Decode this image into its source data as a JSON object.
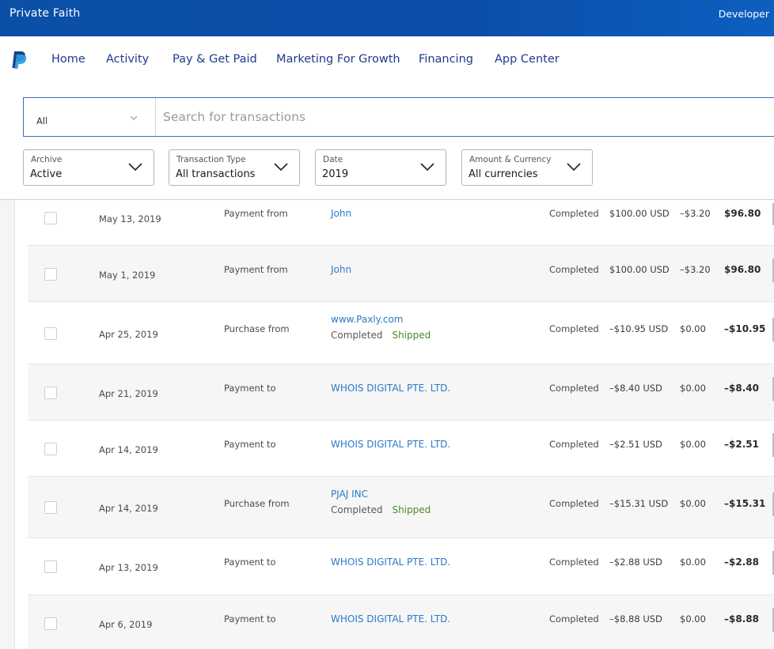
{
  "topbar": {
    "account_name": "Private Faith",
    "developer_label": "Developer"
  },
  "nav": {
    "items": [
      "Home",
      "Activity",
      "Pay & Get Paid",
      "Marketing For Growth",
      "Financing",
      "App Center"
    ]
  },
  "search": {
    "scope_value": "All",
    "placeholder": "Search for transactions"
  },
  "filters": [
    {
      "label": "Archive",
      "value": "Active"
    },
    {
      "label": "Transaction Type",
      "value": "All transactions"
    },
    {
      "label": "Date",
      "value": "2019"
    },
    {
      "label": "Amount & Currency",
      "value": "All currencies"
    }
  ],
  "transactions": [
    {
      "date": "May 13, 2019",
      "type": "Payment from",
      "name": "John",
      "sub_status": "",
      "sub_ship": "",
      "status": "Completed",
      "gross": "$100.00 USD",
      "fee": "–$3.20",
      "net": "$96.80"
    },
    {
      "date": "May 1, 2019",
      "type": "Payment from",
      "name": "John",
      "sub_status": "",
      "sub_ship": "",
      "status": "Completed",
      "gross": "$100.00 USD",
      "fee": "–$3.20",
      "net": "$96.80"
    },
    {
      "date": "Apr 25, 2019",
      "type": "Purchase from",
      "name": "www.Paxly.com",
      "sub_status": "Completed",
      "sub_ship": "Shipped",
      "status": "Completed",
      "gross": "–$10.95 USD",
      "fee": "$0.00",
      "net": "–$10.95"
    },
    {
      "date": "Apr 21, 2019",
      "type": "Payment to",
      "name": "WHOIS DIGITAL PTE. LTD.",
      "sub_status": "",
      "sub_ship": "",
      "status": "Completed",
      "gross": "–$8.40 USD",
      "fee": "$0.00",
      "net": "–$8.40"
    },
    {
      "date": "Apr 14, 2019",
      "type": "Payment to",
      "name": "WHOIS DIGITAL PTE. LTD.",
      "sub_status": "",
      "sub_ship": "",
      "status": "Completed",
      "gross": "–$2.51 USD",
      "fee": "$0.00",
      "net": "–$2.51"
    },
    {
      "date": "Apr 14, 2019",
      "type": "Purchase from",
      "name": "PJAJ INC",
      "sub_status": "Completed",
      "sub_ship": "Shipped",
      "status": "Completed",
      "gross": "–$15.31 USD",
      "fee": "$0.00",
      "net": "–$15.31"
    },
    {
      "date": "Apr 13, 2019",
      "type": "Payment to",
      "name": "WHOIS DIGITAL PTE. LTD.",
      "sub_status": "",
      "sub_ship": "",
      "status": "Completed",
      "gross": "–$2.88 USD",
      "fee": "$0.00",
      "net": "–$2.88"
    },
    {
      "date": "Apr 6, 2019",
      "type": "Payment to",
      "name": "WHOIS DIGITAL PTE. LTD.",
      "sub_status": "",
      "sub_ship": "",
      "status": "Completed",
      "gross": "–$8.88 USD",
      "fee": "$0.00",
      "net": "–$8.88"
    }
  ]
}
